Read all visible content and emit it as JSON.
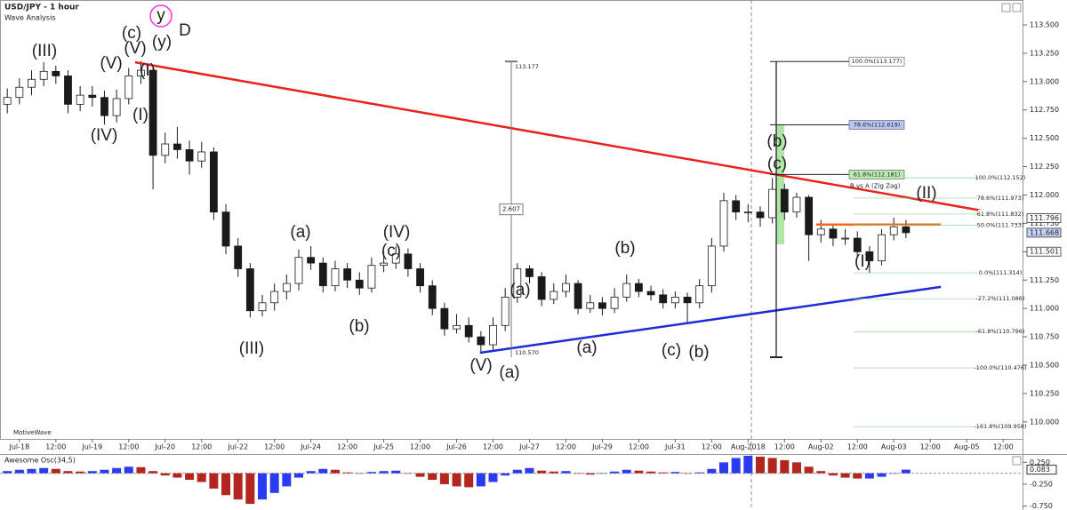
{
  "chart_data": [
    {
      "type": "candlestick",
      "title": "USD/JPY - 1 hour",
      "subtitle": "Wave Analysis",
      "watermark": "MotiveWave",
      "x": [
        -4,
        0,
        4,
        8,
        12,
        16,
        20,
        24,
        28,
        32,
        36,
        40,
        44,
        48,
        52,
        56,
        60,
        64,
        68,
        72,
        76,
        80,
        84,
        88,
        92,
        96,
        100,
        104,
        108,
        112,
        116,
        120,
        124,
        128,
        132,
        136,
        140,
        144,
        148,
        152,
        156,
        160,
        164,
        168,
        172,
        176,
        180,
        184,
        188,
        192,
        196,
        200,
        204,
        208,
        212,
        216,
        220,
        224,
        228,
        232,
        236,
        240,
        244,
        248,
        252,
        256,
        260,
        264,
        268,
        272,
        276,
        280,
        284,
        288,
        292
      ],
      "open": [
        112.8,
        112.86,
        112.95,
        113.02,
        113.09,
        113.05,
        112.8,
        112.88,
        112.86,
        112.7,
        112.85,
        113.05,
        113.1,
        112.35,
        112.45,
        112.4,
        112.3,
        112.38,
        111.85,
        111.55,
        111.35,
        110.98,
        111.05,
        111.15,
        111.22,
        111.45,
        111.4,
        111.2,
        111.35,
        111.25,
        111.18,
        111.38,
        111.4,
        111.48,
        111.35,
        111.2,
        111.0,
        110.82,
        110.85,
        110.75,
        110.68,
        110.85,
        111.1,
        111.35,
        111.28,
        111.08,
        111.15,
        111.22,
        111.0,
        111.05,
        111.0,
        111.1,
        111.22,
        111.15,
        111.12,
        111.05,
        111.1,
        111.05,
        111.2,
        111.55,
        111.95,
        111.85,
        111.85,
        111.8,
        112.05,
        111.85,
        111.98,
        111.65,
        111.7,
        111.62,
        111.62,
        111.5,
        111.42,
        111.65,
        111.72
      ],
      "high": [
        112.94,
        113.03,
        113.1,
        113.17,
        113.14,
        113.1,
        112.96,
        112.96,
        112.92,
        112.93,
        113.12,
        113.18,
        113.15,
        112.55,
        112.6,
        112.48,
        112.47,
        112.42,
        111.92,
        111.62,
        111.4,
        111.12,
        111.22,
        111.3,
        111.52,
        111.55,
        111.45,
        111.42,
        111.4,
        111.32,
        111.45,
        111.5,
        111.55,
        111.53,
        111.4,
        111.25,
        111.05,
        110.95,
        110.92,
        110.8,
        110.92,
        111.18,
        111.4,
        111.38,
        111.32,
        111.22,
        111.3,
        111.25,
        111.12,
        111.1,
        111.18,
        111.3,
        111.26,
        111.2,
        111.17,
        111.15,
        111.14,
        111.26,
        111.62,
        112.02,
        112.0,
        111.92,
        111.9,
        112.15,
        112.1,
        112.02,
        112.0,
        111.78,
        111.75,
        111.7,
        111.68,
        111.55,
        111.7,
        111.8,
        111.78
      ],
      "low": [
        112.72,
        112.8,
        112.88,
        112.96,
        112.98,
        112.72,
        112.74,
        112.78,
        112.62,
        112.64,
        112.8,
        112.98,
        112.05,
        112.28,
        112.32,
        112.18,
        112.24,
        111.78,
        111.48,
        111.28,
        110.92,
        110.93,
        110.98,
        111.08,
        111.16,
        111.34,
        111.14,
        111.15,
        111.18,
        111.12,
        111.14,
        111.32,
        111.35,
        111.28,
        111.14,
        110.94,
        110.76,
        110.78,
        110.7,
        110.62,
        110.63,
        110.8,
        111.05,
        111.22,
        111.02,
        111.04,
        111.1,
        110.95,
        110.96,
        110.94,
        110.96,
        111.06,
        111.1,
        111.07,
        111.0,
        111.0,
        110.88,
        111.0,
        111.14,
        111.5,
        111.78,
        111.76,
        111.72,
        111.75,
        111.78,
        111.8,
        111.42,
        111.58,
        111.55,
        111.56,
        111.45,
        111.31,
        111.38,
        111.6,
        111.62
      ],
      "close": [
        112.86,
        112.95,
        113.02,
        113.09,
        113.05,
        112.8,
        112.88,
        112.86,
        112.7,
        112.85,
        113.05,
        113.1,
        112.35,
        112.45,
        112.4,
        112.3,
        112.38,
        111.85,
        111.55,
        111.35,
        110.98,
        111.05,
        111.15,
        111.22,
        111.45,
        111.4,
        111.2,
        111.35,
        111.25,
        111.18,
        111.38,
        111.4,
        111.48,
        111.35,
        111.2,
        111.0,
        110.82,
        110.85,
        110.75,
        110.68,
        110.85,
        111.1,
        111.35,
        111.28,
        111.08,
        111.15,
        111.22,
        111.0,
        111.05,
        111.0,
        111.1,
        111.22,
        111.15,
        111.12,
        111.05,
        111.1,
        111.05,
        111.2,
        111.55,
        111.95,
        111.85,
        111.85,
        111.8,
        112.05,
        111.85,
        111.98,
        111.65,
        111.7,
        111.62,
        111.62,
        111.5,
        111.42,
        111.65,
        111.72,
        111.668
      ],
      "color": "#1a1a1a",
      "xlim": [
        -6.4,
        330.4
      ],
      "ylim": [
        109.85,
        113.68
      ],
      "xticks": [
        {
          "value": 0,
          "label": "Jul-18"
        },
        {
          "value": 12,
          "label": "12:00"
        },
        {
          "value": 24,
          "label": "Jul-19"
        },
        {
          "value": 36,
          "label": "12:00"
        },
        {
          "value": 48,
          "label": "Jul-20"
        },
        {
          "value": 60,
          "label": "12:00"
        },
        {
          "value": 72,
          "label": "Jul-22"
        },
        {
          "value": 84,
          "label": "12:00"
        },
        {
          "value": 96,
          "label": "Jul-24"
        },
        {
          "value": 108,
          "label": "12:00"
        },
        {
          "value": 120,
          "label": "Jul-25"
        },
        {
          "value": 132,
          "label": "12:00"
        },
        {
          "value": 144,
          "label": "Jul-26"
        },
        {
          "value": 156,
          "label": "12:00"
        },
        {
          "value": 168,
          "label": "Jul-27"
        },
        {
          "value": 180,
          "label": "12:00"
        },
        {
          "value": 192,
          "label": "Jul-29"
        },
        {
          "value": 204,
          "label": "12:00"
        },
        {
          "value": 216,
          "label": "Jul-31"
        },
        {
          "value": 228,
          "label": "12:00"
        },
        {
          "value": 240,
          "label": "Aug-2018"
        },
        {
          "value": 252,
          "label": "12:00"
        },
        {
          "value": 264,
          "label": "Aug-02"
        },
        {
          "value": 276,
          "label": "12:00"
        },
        {
          "value": 288,
          "label": "Aug-03"
        },
        {
          "value": 300,
          "label": "12:00"
        },
        {
          "value": 312,
          "label": "Aug-05"
        },
        {
          "value": 324,
          "label": "12:00"
        }
      ],
      "yticks": [
        {
          "value": 110,
          "label": "110.000"
        },
        {
          "value": 110.25,
          "label": "110.250"
        },
        {
          "value": 110.5,
          "label": "110.500"
        },
        {
          "value": 110.75,
          "label": "110.750"
        },
        {
          "value": 111,
          "label": "111.000"
        },
        {
          "value": 111.25,
          "label": "111.250"
        },
        {
          "value": 111.5,
          "label": "111.500"
        },
        {
          "value": 111.75,
          "label": "111.750"
        },
        {
          "value": 112,
          "label": "112.000"
        },
        {
          "value": 112.25,
          "label": "112.250"
        },
        {
          "value": 112.5,
          "label": "112.500"
        },
        {
          "value": 112.75,
          "label": "112.750"
        },
        {
          "value": 113,
          "label": "113.000"
        },
        {
          "value": 113.25,
          "label": "113.250"
        },
        {
          "value": 113.5,
          "label": "113.500"
        }
      ],
      "price_markers": [
        111.796,
        111.501
      ],
      "trendlines": [
        {
          "color": "#e8221c",
          "x": [
            38.1,
            330.4
          ],
          "y": [
            113.17,
            111.8
          ]
        },
        {
          "color": "#1f2bd6",
          "x": [
            151.7,
            303.5
          ],
          "y": [
            110.61,
            111.19
          ]
        },
        {
          "color": "#f26a1b",
          "x": [
            262.4,
            303.5
          ],
          "y": [
            111.74,
            111.74
          ]
        }
      ],
      "fib_right": [
        {
          "label": "100.0%(112.152)",
          "value": 112.152
        },
        {
          "label": "78.6%(111.973)",
          "value": 111.973
        },
        {
          "label": "61.8%(111.832)",
          "value": 111.832
        },
        {
          "label": "50.0%(111.733)",
          "value": 111.733
        },
        {
          "label": "0.0%(111.314)",
          "value": 111.314
        },
        {
          "label": "-27.2%(111.086)",
          "value": 111.086
        },
        {
          "label": "-61.8%(110.796)",
          "value": 110.796
        },
        {
          "label": "-100.0%(110.476)",
          "value": 110.476
        },
        {
          "label": "-161.8%(109.958)",
          "value": 109.958
        }
      ],
      "fib_left": [
        {
          "label": "100.0%(113.177)",
          "value": 113.177,
          "color": "#ffffff"
        },
        {
          "label": "78.6%(112.619)",
          "value": 112.619,
          "color": "#b8c4f4"
        },
        {
          "label": "61.8%(112.181)",
          "value": 112.181,
          "color": "#b9eab5"
        }
      ],
      "fib_left_title": "B vs A (Zig Zag)",
      "measure": {
        "top": 113.177,
        "range": 2.607,
        "bottom": {
          "value": 110.57,
          "label": "110.570"
        }
      },
      "wave_labels": [
        {
          "text": "(III)",
          "color": "#f7941d"
        },
        {
          "text": "(c)",
          "color": "#1a7f2a"
        },
        {
          "text": "(V)",
          "color": "#3dcc3d"
        },
        {
          "text": "(y)",
          "color": "#1f2bd6"
        },
        {
          "text": "y",
          "color": "#ff33cc"
        },
        {
          "text": "D",
          "color": "#c98be8"
        },
        {
          "text": "(V)",
          "color": "#f7941d"
        },
        {
          "text": "(I)",
          "color": "#f7941d"
        },
        {
          "text": "(I)",
          "color": "#f7941d"
        },
        {
          "text": "(IV)",
          "color": "#f7941d"
        },
        {
          "text": "(III)",
          "color": "#f7941d"
        },
        {
          "text": "(a)",
          "color": "#3dcc3d"
        },
        {
          "text": "(IV)",
          "color": "#f7941d"
        },
        {
          "text": "(c)",
          "color": "#3dcc3d"
        },
        {
          "text": "(b)",
          "color": "#3dcc3d"
        },
        {
          "text": "(a)",
          "color": "#f7941d"
        },
        {
          "text": "(V)",
          "color": "#f7941d"
        },
        {
          "text": "(a)",
          "color": "#e8221c"
        },
        {
          "text": "(b)",
          "color": "#3dcc3d"
        },
        {
          "text": "(a)",
          "color": "#3dcc3d"
        },
        {
          "text": "(c)",
          "color": "#3dcc3d"
        },
        {
          "text": "(b)",
          "color": "#f7941d"
        },
        {
          "text": "(b)",
          "color": "#e8221c"
        },
        {
          "text": "(c)",
          "color": "#f7941d"
        },
        {
          "text": "(II)",
          "color": "#f7941d"
        },
        {
          "text": "(I)",
          "color": "#f7941d"
        }
      ]
    },
    {
      "type": "bar",
      "title": "Awesome Osc(34,5)",
      "x": [
        -4,
        0,
        4,
        8,
        12,
        16,
        20,
        24,
        28,
        32,
        36,
        40,
        44,
        48,
        52,
        56,
        60,
        64,
        68,
        72,
        76,
        80,
        84,
        88,
        92,
        96,
        100,
        104,
        108,
        112,
        116,
        120,
        124,
        128,
        132,
        136,
        140,
        144,
        148,
        152,
        156,
        160,
        164,
        168,
        172,
        176,
        180,
        184,
        188,
        192,
        196,
        200,
        204,
        208,
        212,
        216,
        220,
        224,
        228,
        232,
        236,
        240,
        244,
        248,
        252,
        256,
        260,
        264,
        268,
        272,
        276,
        280,
        284,
        288,
        292
      ],
      "values": [
        0.05,
        0.08,
        0.1,
        0.12,
        0.1,
        0.05,
        0.04,
        0.05,
        0.08,
        0.12,
        0.15,
        0.14,
        0.05,
        -0.05,
        -0.1,
        -0.15,
        -0.2,
        -0.35,
        -0.5,
        -0.6,
        -0.7,
        -0.6,
        -0.45,
        -0.3,
        -0.1,
        0.05,
        0.1,
        0.08,
        0.02,
        0.0,
        0.03,
        0.05,
        0.06,
        0.0,
        -0.08,
        -0.15,
        -0.25,
        -0.3,
        -0.32,
        -0.3,
        -0.2,
        -0.05,
        0.08,
        0.12,
        0.06,
        0.04,
        0.05,
        0.0,
        -0.03,
        0.0,
        0.04,
        0.08,
        0.06,
        0.04,
        0.02,
        0.03,
        0.0,
        0.02,
        0.1,
        0.25,
        0.35,
        0.4,
        0.38,
        0.35,
        0.3,
        0.25,
        0.15,
        0.05,
        -0.05,
        -0.1,
        -0.12,
        -0.12,
        -0.08,
        0.0,
        0.083
      ],
      "up_color": "#2b3cf0",
      "down_color": "#b3261e",
      "xlim": [
        -6.4,
        330.4
      ],
      "ylim": [
        -0.8,
        0.4
      ],
      "yticks": [
        {
          "value": 0.25,
          "label": "0.250"
        },
        {
          "value": -0.25,
          "label": "-0.250"
        },
        {
          "value": -0.75,
          "label": "-0.750"
        }
      ]
    }
  ]
}
